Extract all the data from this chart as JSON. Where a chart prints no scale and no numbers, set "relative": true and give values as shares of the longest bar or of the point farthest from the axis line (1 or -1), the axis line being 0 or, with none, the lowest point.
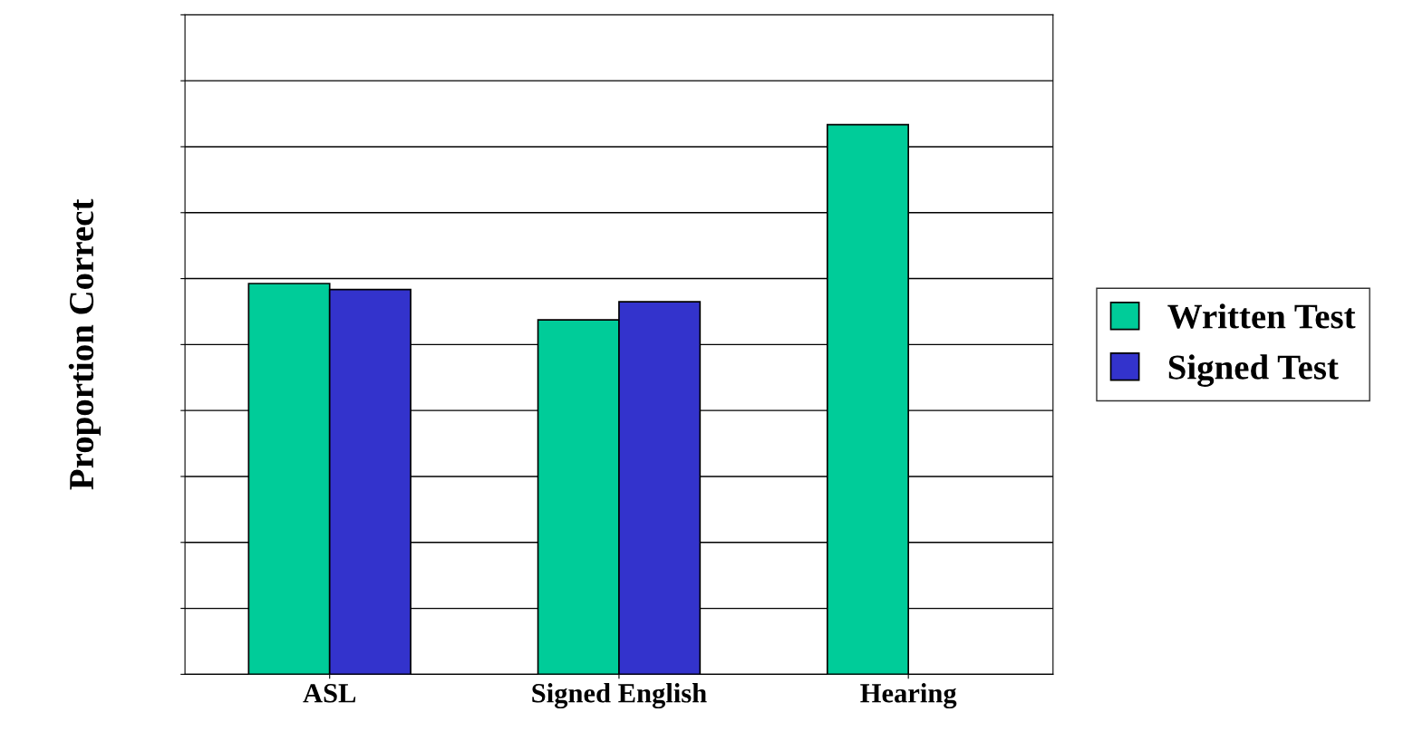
{
  "chart_data": {
    "type": "bar",
    "ylabel": "Proportion Correct",
    "relative": true,
    "categories": [
      "ASL",
      "Signed English",
      "Hearing"
    ],
    "series": [
      {
        "name": "Written Test",
        "color": "#00cc99",
        "values": [
          0.711,
          0.645,
          1
        ]
      },
      {
        "name": "Signed Test",
        "color": "#3333cc",
        "values": [
          0.7,
          0.678,
          null
        ]
      }
    ],
    "grid": "y",
    "legend": "right"
  }
}
